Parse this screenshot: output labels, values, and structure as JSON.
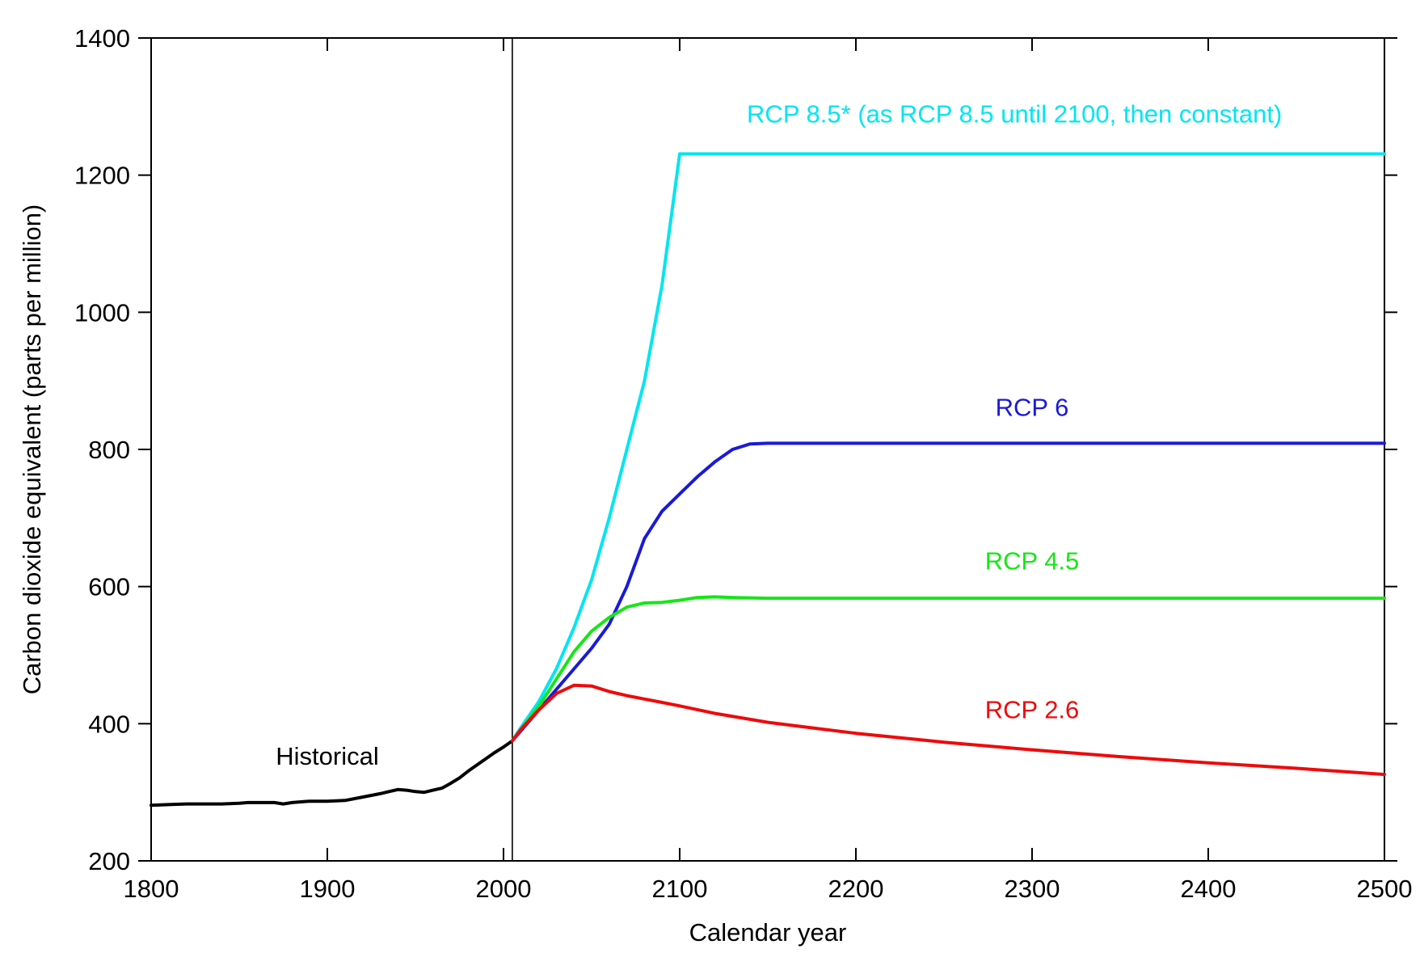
{
  "chart_data": {
    "type": "line",
    "xlabel": "Calendar year",
    "ylabel": "Carbon dioxide equivalent (parts per million)",
    "xlim": [
      1800,
      2500
    ],
    "ylim": [
      200,
      1400
    ],
    "xticks": [
      1800,
      1900,
      2000,
      2100,
      2200,
      2300,
      2400,
      2500
    ],
    "yticks": [
      200,
      400,
      600,
      800,
      1000,
      1200,
      1400
    ],
    "grid": false,
    "reference_line_x": 2005,
    "series": [
      {
        "name": "Historical",
        "color": "#000000",
        "label_at": [
          1900,
          340
        ],
        "x": [
          1800,
          1810,
          1820,
          1830,
          1840,
          1850,
          1855,
          1860,
          1865,
          1870,
          1875,
          1880,
          1890,
          1900,
          1910,
          1920,
          1930,
          1935,
          1940,
          1945,
          1950,
          1955,
          1960,
          1965,
          1970,
          1975,
          1980,
          1985,
          1990,
          1995,
          2000,
          2005
        ],
        "y": [
          281,
          282,
          283,
          283,
          283,
          284,
          285,
          285,
          285,
          285,
          283,
          285,
          287,
          287,
          288,
          293,
          298,
          301,
          304,
          303,
          301,
          300,
          303,
          306,
          313,
          321,
          331,
          340,
          349,
          358,
          366,
          375
        ]
      },
      {
        "name": "RCP 8.5* (as RCP 8.5 until 2100, then constant)",
        "color": "#00e5f0",
        "label_at": [
          2290,
          1277
        ],
        "x": [
          2005,
          2010,
          2020,
          2030,
          2040,
          2050,
          2060,
          2070,
          2080,
          2090,
          2100,
          2150,
          2200,
          2300,
          2400,
          2500
        ],
        "y": [
          375,
          395,
          432,
          480,
          540,
          610,
          700,
          800,
          900,
          1040,
          1231,
          1231,
          1231,
          1231,
          1231,
          1231
        ]
      },
      {
        "name": "RCP 6",
        "color": "#1a1ad8",
        "label_at": [
          2300,
          849
        ],
        "x": [
          2005,
          2010,
          2020,
          2030,
          2040,
          2050,
          2060,
          2070,
          2080,
          2090,
          2100,
          2110,
          2120,
          2130,
          2140,
          2150,
          2200,
          2300,
          2400,
          2500
        ],
        "y": [
          375,
          390,
          420,
          450,
          480,
          510,
          545,
          600,
          670,
          710,
          735,
          760,
          782,
          800,
          808,
          809,
          809,
          809,
          809,
          809
        ]
      },
      {
        "name": "RCP 4.5",
        "color": "#16e616",
        "label_at": [
          2300,
          625
        ],
        "x": [
          2005,
          2010,
          2020,
          2030,
          2040,
          2050,
          2060,
          2070,
          2080,
          2090,
          2100,
          2110,
          2120,
          2130,
          2150,
          2200,
          2300,
          2400,
          2500
        ],
        "y": [
          375,
          392,
          425,
          465,
          505,
          535,
          555,
          570,
          576,
          577,
          580,
          584,
          585,
          584,
          583,
          583,
          583,
          583,
          583
        ]
      },
      {
        "name": "RCP 2.6",
        "color": "#ee0a0a",
        "label_at": [
          2300,
          408
        ],
        "x": [
          2005,
          2010,
          2020,
          2030,
          2040,
          2050,
          2060,
          2070,
          2080,
          2090,
          2100,
          2120,
          2150,
          2200,
          2250,
          2300,
          2350,
          2400,
          2450,
          2500
        ],
        "y": [
          375,
          392,
          420,
          444,
          456,
          455,
          447,
          441,
          436,
          431,
          426,
          415,
          402,
          386,
          373,
          362,
          352,
          343,
          335,
          326
        ]
      }
    ]
  }
}
